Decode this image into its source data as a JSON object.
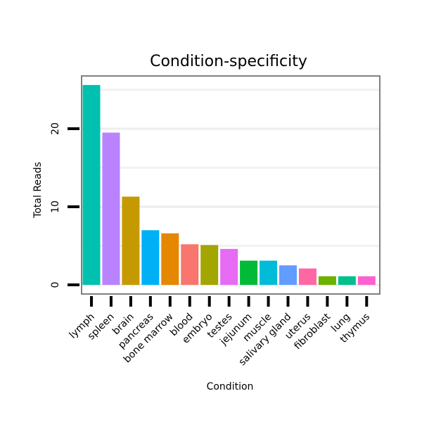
{
  "chart_data": {
    "type": "bar",
    "title": "Condition-specificity",
    "xlabel": "Condition",
    "ylabel": "Total Reads",
    "ylim": [
      0,
      26
    ],
    "yticks": [
      0,
      10,
      20
    ],
    "grid": true,
    "categories": [
      "lymph",
      "spleen",
      "brain",
      "pancreas",
      "bone marrow",
      "blood",
      "embryo",
      "testes",
      "jejunum",
      "muscle",
      "salivary gland",
      "uterus",
      "fibroblast",
      "lung",
      "thymus"
    ],
    "values": [
      25.6,
      19.5,
      11.3,
      7.0,
      6.6,
      5.2,
      5.1,
      4.6,
      3.1,
      3.1,
      2.5,
      2.1,
      1.1,
      1.1,
      1.1
    ],
    "colors": [
      "#00C0AF",
      "#B983FF",
      "#C49A00",
      "#00B0F6",
      "#E58700",
      "#F8766D",
      "#A3A500",
      "#E76BF3",
      "#00BA38",
      "#00BCD8",
      "#619CFF",
      "#FF67A4",
      "#6BB100",
      "#00C08B",
      "#FD61D1"
    ]
  }
}
